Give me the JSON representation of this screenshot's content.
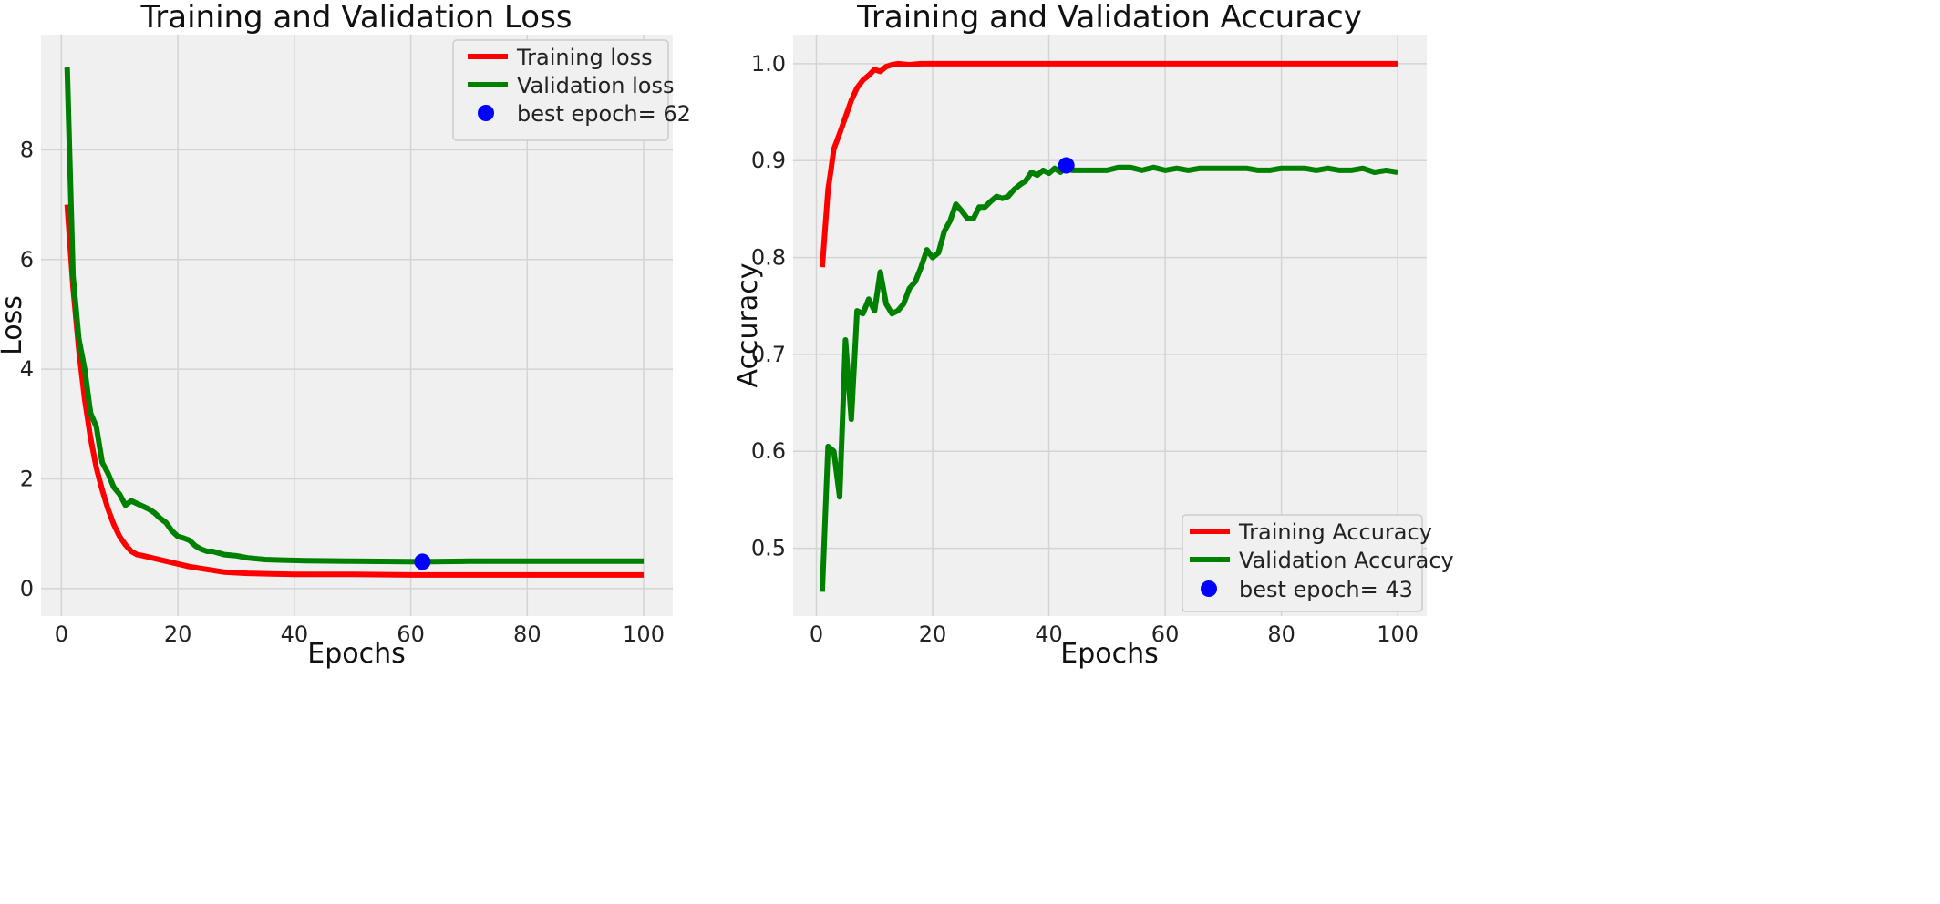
{
  "chart_data": [
    {
      "type": "line",
      "title": "Training and Validation Loss",
      "xlabel": "Epochs",
      "ylabel": "Loss",
      "xlim": [
        -3.5,
        105
      ],
      "ylim": [
        -0.5,
        10.1
      ],
      "xticks": [
        0,
        20,
        40,
        60,
        80,
        100
      ],
      "yticks": [
        0,
        2,
        4,
        6,
        8
      ],
      "grid": true,
      "legend_position": "top-right",
      "legend_text": [
        "Training loss",
        "Validation loss",
        "best epoch= 62"
      ],
      "series": [
        {
          "name": "Training loss",
          "color": "#ff0000",
          "x": [
            1,
            2,
            3,
            4,
            5,
            6,
            7,
            8,
            9,
            10,
            11,
            12,
            13,
            14,
            16,
            18,
            20,
            22,
            25,
            28,
            32,
            36,
            40,
            50,
            60,
            70,
            80,
            90,
            100
          ],
          "y": [
            7.0,
            5.5,
            4.35,
            3.45,
            2.75,
            2.2,
            1.8,
            1.45,
            1.17,
            0.95,
            0.8,
            0.68,
            0.62,
            0.6,
            0.55,
            0.5,
            0.45,
            0.4,
            0.35,
            0.3,
            0.28,
            0.27,
            0.26,
            0.26,
            0.25,
            0.25,
            0.25,
            0.25,
            0.25
          ]
        },
        {
          "name": "Validation loss",
          "color": "#008000",
          "x": [
            1,
            2,
            3,
            4,
            5,
            6,
            7,
            8,
            9,
            10,
            11,
            12,
            13,
            14,
            15,
            16,
            17,
            18,
            19,
            20,
            21,
            22,
            23,
            24,
            25,
            26,
            27,
            28,
            30,
            32,
            35,
            38,
            42,
            50,
            62,
            70,
            80,
            90,
            100
          ],
          "y": [
            9.5,
            5.7,
            4.55,
            4.0,
            3.2,
            2.95,
            2.3,
            2.1,
            1.85,
            1.72,
            1.52,
            1.6,
            1.55,
            1.5,
            1.45,
            1.38,
            1.28,
            1.2,
            1.05,
            0.95,
            0.92,
            0.88,
            0.78,
            0.72,
            0.68,
            0.68,
            0.65,
            0.62,
            0.6,
            0.56,
            0.53,
            0.52,
            0.51,
            0.5,
            0.49,
            0.5,
            0.5,
            0.5,
            0.5
          ]
        }
      ],
      "best_point": {
        "name": "best epoch= 62",
        "x": 62,
        "y": 0.49,
        "color": "#0000ff"
      }
    },
    {
      "type": "line",
      "title": "Training and Validation Accuracy",
      "xlabel": "Epochs",
      "ylabel": "Accuracy",
      "xlim": [
        -4,
        105
      ],
      "ylim": [
        0.43,
        1.03
      ],
      "xticks": [
        0,
        20,
        40,
        60,
        80,
        100
      ],
      "yticks": [
        0.5,
        0.6,
        0.7,
        0.8,
        0.9,
        1.0
      ],
      "ytick_labels": [
        "0.5",
        "0.6",
        "0.7",
        "0.8",
        "0.9",
        "1.0"
      ],
      "grid": true,
      "legend_position": "bottom-right",
      "legend_text": [
        "Training Accuracy",
        "Validation Accuracy",
        "best epoch= 43"
      ],
      "series": [
        {
          "name": "Training Accuracy",
          "color": "#ff0000",
          "x": [
            1,
            1.5,
            2,
            2.5,
            3,
            4,
            5,
            6,
            7,
            8,
            9,
            10,
            11,
            12,
            13,
            14,
            16,
            18,
            20,
            25,
            30,
            40,
            50,
            60,
            70,
            80,
            90,
            95,
            100
          ],
          "y": [
            0.79,
            0.83,
            0.87,
            0.89,
            0.912,
            0.928,
            0.945,
            0.962,
            0.975,
            0.983,
            0.988,
            0.994,
            0.992,
            0.997,
            0.999,
            1.0,
            0.999,
            1.0,
            1.0,
            1.0,
            1.0,
            1.0,
            1.0,
            1.0,
            1.0,
            1.0,
            1.0,
            1.0,
            1.0
          ]
        },
        {
          "name": "Validation Accuracy",
          "color": "#008000",
          "x": [
            1,
            2,
            3,
            4,
            5,
            6,
            7,
            8,
            9,
            10,
            11,
            12,
            13,
            14,
            15,
            16,
            17,
            18,
            19,
            20,
            21,
            22,
            23,
            24,
            25,
            26,
            27,
            28,
            29,
            30,
            31,
            32,
            33,
            34,
            35,
            36,
            37,
            38,
            39,
            40,
            41,
            42,
            43,
            44,
            46,
            48,
            50,
            52,
            54,
            56,
            58,
            60,
            62,
            64,
            66,
            68,
            70,
            72,
            74,
            76,
            78,
            80,
            82,
            84,
            86,
            88,
            90,
            92,
            94,
            96,
            98,
            100
          ],
          "y": [
            0.455,
            0.605,
            0.6,
            0.553,
            0.715,
            0.633,
            0.745,
            0.742,
            0.757,
            0.745,
            0.785,
            0.752,
            0.742,
            0.745,
            0.752,
            0.768,
            0.775,
            0.79,
            0.808,
            0.8,
            0.805,
            0.827,
            0.838,
            0.855,
            0.848,
            0.84,
            0.84,
            0.852,
            0.852,
            0.858,
            0.863,
            0.861,
            0.863,
            0.87,
            0.875,
            0.879,
            0.888,
            0.885,
            0.89,
            0.887,
            0.892,
            0.888,
            0.895,
            0.89,
            0.89,
            0.89,
            0.89,
            0.893,
            0.893,
            0.89,
            0.893,
            0.89,
            0.892,
            0.89,
            0.892,
            0.892,
            0.892,
            0.892,
            0.892,
            0.89,
            0.89,
            0.892,
            0.892,
            0.892,
            0.89,
            0.892,
            0.89,
            0.89,
            0.892,
            0.888,
            0.89,
            0.888
          ]
        }
      ],
      "best_point": {
        "name": "best epoch= 43",
        "x": 43,
        "y": 0.895,
        "color": "#0000ff"
      }
    }
  ]
}
